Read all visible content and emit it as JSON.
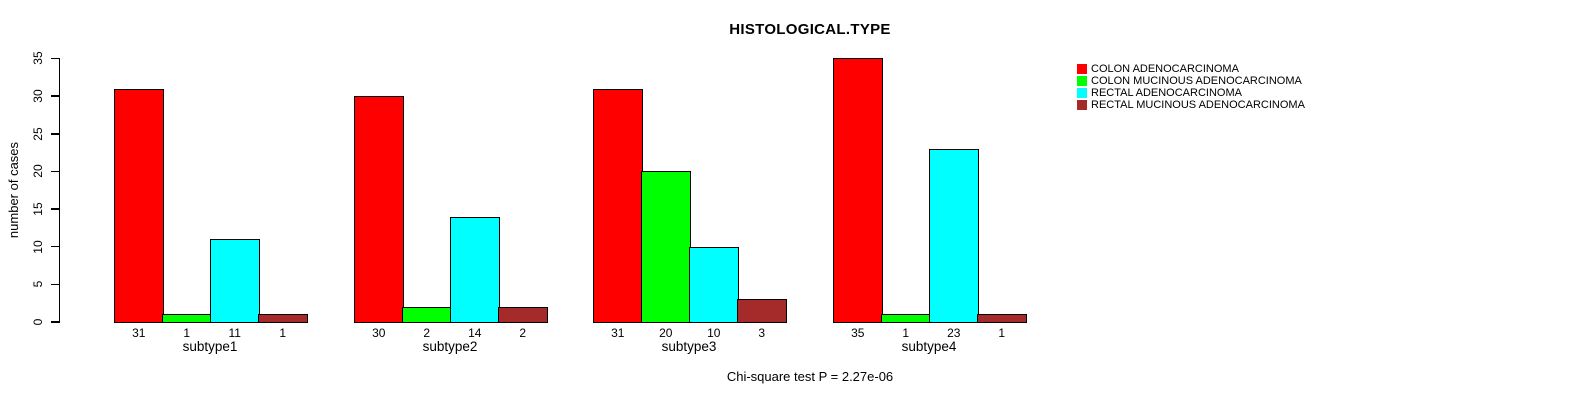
{
  "chart_data": {
    "type": "bar",
    "title": "HISTOLOGICAL.TYPE",
    "ylabel": "number of cases",
    "xlabel": "",
    "categories": [
      "subtype1",
      "subtype2",
      "subtype3",
      "subtype4"
    ],
    "series": [
      {
        "name": "COLON ADENOCARCINOMA",
        "color": "#FF0000",
        "values": [
          31,
          30,
          31,
          35
        ]
      },
      {
        "name": "COLON MUCINOUS ADENOCARCINOMA",
        "color": "#00FF00",
        "values": [
          1,
          2,
          20,
          1
        ]
      },
      {
        "name": "RECTAL ADENOCARCINOMA",
        "color": "#00FFFF",
        "values": [
          11,
          14,
          10,
          23
        ]
      },
      {
        "name": "RECTAL MUCINOUS ADENOCARCINOMA",
        "color": "#A52A2A",
        "values": [
          1,
          2,
          3,
          1
        ]
      }
    ],
    "ylim": [
      0,
      35
    ],
    "yticks": [
      0,
      5,
      10,
      15,
      20,
      25,
      30,
      35
    ],
    "bar_value_labels": true,
    "grid": false,
    "legend_position": "top-right",
    "annotation": "Chi-square test P = 2.27e-06",
    "background": "#FFFFFF",
    "axis_color": "#000000"
  }
}
